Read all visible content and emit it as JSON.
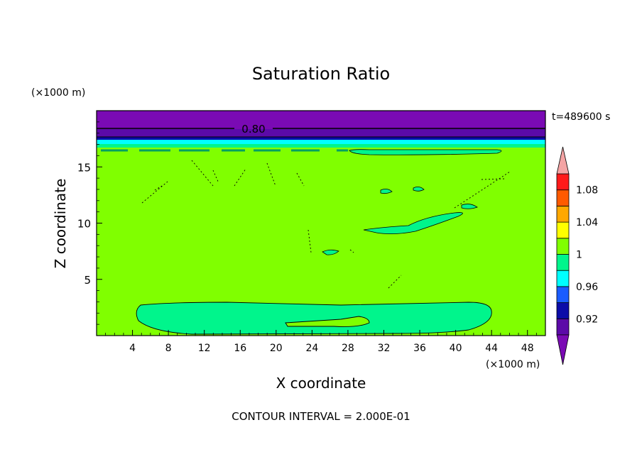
{
  "chart_data": {
    "type": "heatmap",
    "title": "Saturation Ratio",
    "xlabel": "X coordinate",
    "ylabel": "Z coordinate",
    "x_unit": "(×1000 m)",
    "z_unit": "(×1000 m)",
    "time_label": "t=489600 s",
    "footer": "CONTOUR INTERVAL = 2.000E-01",
    "xlim": [
      0,
      50
    ],
    "ylim": [
      0,
      20
    ],
    "x_ticks": [
      4,
      8,
      12,
      16,
      20,
      24,
      28,
      32,
      36,
      40,
      44,
      48
    ],
    "y_ticks": [
      5,
      10,
      15
    ],
    "contour_label": "0.80",
    "colorbar": {
      "levels": [
        0.9,
        0.92,
        0.94,
        0.96,
        0.98,
        1.0,
        1.02,
        1.04,
        1.06,
        1.08,
        1.1
      ],
      "tick_labels": [
        {
          "value": 0.92,
          "text": "0.92"
        },
        {
          "value": 0.96,
          "text": "0.96"
        },
        {
          "value": 1.0,
          "text": "1"
        },
        {
          "value": 1.04,
          "text": "1.04"
        },
        {
          "value": 1.08,
          "text": "1.08"
        }
      ],
      "colors": [
        "#5c0aa8",
        "#0c0ca8",
        "#1a5cff",
        "#00ffff",
        "#00f58c",
        "#80ff00",
        "#ffff00",
        "#ffa800",
        "#ff5a00",
        "#ff1a1a"
      ],
      "under_color": "#7a0ab4",
      "over_color": "#f4a4a4"
    },
    "regions": [
      {
        "value": 1.0,
        "color": "#80ff00",
        "note": "bulk domain"
      },
      {
        "value": 0.8,
        "color": "#7a0ab4",
        "note": "upper layer z > 17.5"
      },
      {
        "value": 0.92,
        "color": "#5c0aa8",
        "note": "upper band"
      },
      {
        "value": 0.97,
        "color": "#00ffff",
        "note": "transition band ~17"
      },
      {
        "value": 0.98,
        "color": "#00f58c",
        "note": "low-level subsaturated region x 5-45, z 0-3"
      },
      {
        "value": 0.98,
        "color": "#00f58c",
        "note": "elongated region near tropopause x 30-44"
      },
      {
        "value": 0.98,
        "color": "#00f58c",
        "note": "mid-level patches x 30-40, z 9-10"
      }
    ]
  }
}
